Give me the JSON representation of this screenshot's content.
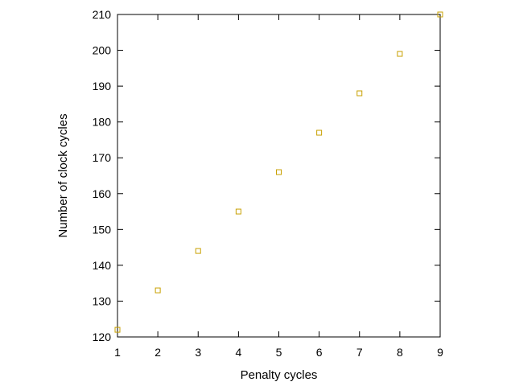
{
  "chart_data": {
    "type": "scatter",
    "title": "",
    "xlabel": "Penalty cycles",
    "ylabel": "Number of clock cycles",
    "xlim": [
      1,
      9
    ],
    "ylim": [
      120,
      210
    ],
    "xticks": [
      1,
      2,
      3,
      4,
      5,
      6,
      7,
      8,
      9
    ],
    "yticks": [
      120,
      130,
      140,
      150,
      160,
      170,
      180,
      190,
      200,
      210
    ],
    "grid": false,
    "legend": "none",
    "series": [
      {
        "color": "#c8a000",
        "marker": "open-square",
        "x": [
          1,
          2,
          3,
          4,
          5,
          6,
          7,
          8,
          9
        ],
        "y": [
          122,
          133,
          144,
          155,
          166,
          177,
          188,
          199,
          210
        ]
      }
    ]
  }
}
